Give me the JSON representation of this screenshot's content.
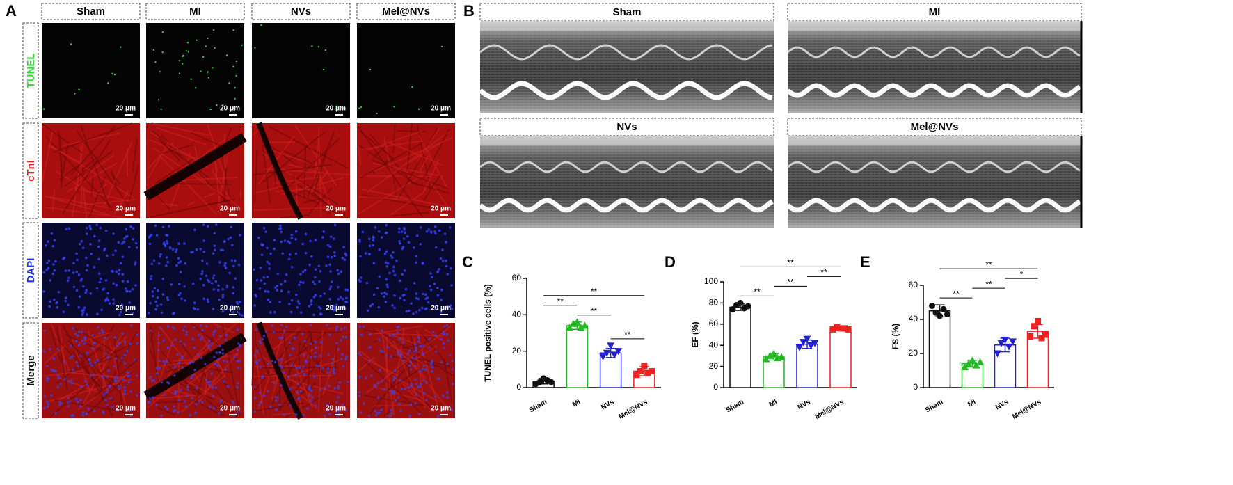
{
  "panel_a": {
    "label": "A",
    "columns": [
      "Sham",
      "MI",
      "NVs",
      "Mel@NVs"
    ],
    "rows": [
      "TUNEL",
      "cTnI",
      "DAPI",
      "Merge"
    ],
    "row_colors": [
      "#33dd33",
      "#ee2222",
      "#2233ee",
      "#111111"
    ],
    "scale_bar": "20 μm"
  },
  "panel_b": {
    "label": "B",
    "panels": [
      "Sham",
      "MI",
      "NVs",
      "Mel@NVs"
    ]
  },
  "chart_data": [
    {
      "panel": "C",
      "type": "bar",
      "ylabel": "TUNEL positive cells (%)",
      "categories": [
        "Sham",
        "MI",
        "NVs",
        "Mel@NVs"
      ],
      "values": [
        3.5,
        34,
        19,
        9
      ],
      "errors": [
        1.5,
        2,
        2.5,
        2.5
      ],
      "colors": [
        "#111111",
        "#22bb22",
        "#2222cc",
        "#ee2222"
      ],
      "markers": [
        "circle",
        "triangle-up",
        "triangle-down",
        "square"
      ],
      "points": [
        [
          2,
          3,
          5,
          4,
          3
        ],
        [
          33,
          35,
          36,
          33,
          34
        ],
        [
          17,
          19,
          23,
          18,
          20
        ],
        [
          7,
          9,
          12,
          8,
          9
        ]
      ],
      "ylim": [
        0,
        60
      ],
      "yticks": [
        0,
        20,
        40,
        60
      ],
      "significance": [
        {
          "pair": [
            "NVs",
            "Mel@NVs"
          ],
          "label": "**"
        },
        {
          "pair": [
            "MI",
            "NVs"
          ],
          "label": "**"
        },
        {
          "pair": [
            "Sham",
            "MI"
          ],
          "label": "**"
        },
        {
          "pair": [
            "Sham",
            "Mel@NVs"
          ],
          "label": "**"
        }
      ]
    },
    {
      "panel": "D",
      "type": "bar",
      "ylabel": "EF (%)",
      "categories": [
        "Sham",
        "MI",
        "NVs",
        "Mel@NVs"
      ],
      "values": [
        76,
        29,
        41,
        56
      ],
      "errors": [
        3,
        3,
        4,
        2
      ],
      "colors": [
        "#111111",
        "#22bb22",
        "#2222cc",
        "#ee2222"
      ],
      "markers": [
        "circle",
        "triangle-up",
        "triangle-down",
        "square"
      ],
      "points": [
        [
          74,
          78,
          80,
          75,
          77
        ],
        [
          27,
          30,
          32,
          28,
          29
        ],
        [
          38,
          43,
          46,
          40,
          42
        ],
        [
          55,
          57,
          56,
          56,
          55
        ]
      ],
      "ylim": [
        0,
        100
      ],
      "yticks": [
        0,
        20,
        40,
        60,
        80,
        100
      ],
      "significance": [
        {
          "pair": [
            "Sham",
            "MI"
          ],
          "label": "**"
        },
        {
          "pair": [
            "MI",
            "NVs"
          ],
          "label": "**"
        },
        {
          "pair": [
            "NVs",
            "Mel@NVs"
          ],
          "label": "**"
        },
        {
          "pair": [
            "Sham",
            "Mel@NVs"
          ],
          "label": "**"
        }
      ]
    },
    {
      "panel": "E",
      "type": "bar",
      "ylabel": "FS (%)",
      "categories": [
        "Sham",
        "MI",
        "NVs",
        "Mel@NVs"
      ],
      "values": [
        45,
        14,
        25,
        33
      ],
      "errors": [
        3.5,
        2,
        4,
        4
      ],
      "colors": [
        "#111111",
        "#22bb22",
        "#2222cc",
        "#ee2222"
      ],
      "markers": [
        "circle",
        "triangle-up",
        "triangle-down",
        "square"
      ],
      "points": [
        [
          48,
          44,
          42,
          46,
          43
        ],
        [
          12,
          14,
          16,
          13,
          15
        ],
        [
          20,
          26,
          28,
          24,
          27
        ],
        [
          30,
          36,
          39,
          29,
          31
        ]
      ],
      "ylim": [
        0,
        60
      ],
      "yticks": [
        0,
        20,
        40,
        60
      ],
      "significance": [
        {
          "pair": [
            "Sham",
            "MI"
          ],
          "label": "**"
        },
        {
          "pair": [
            "MI",
            "NVs"
          ],
          "label": "**"
        },
        {
          "pair": [
            "NVs",
            "Mel@NVs"
          ],
          "label": "*"
        },
        {
          "pair": [
            "Sham",
            "Mel@NVs"
          ],
          "label": "**"
        }
      ]
    }
  ]
}
